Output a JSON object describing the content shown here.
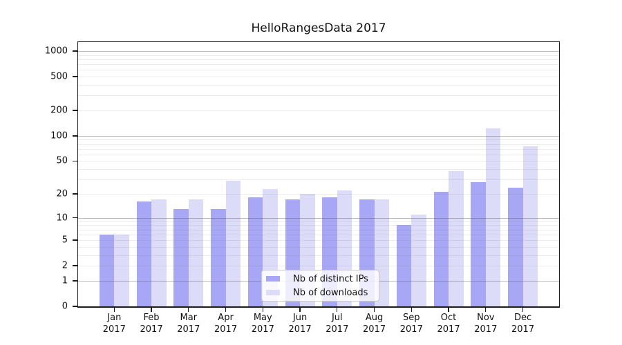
{
  "chart_data": {
    "type": "bar",
    "title": "HelloRangesData 2017",
    "categories": [
      "Jan",
      "Feb",
      "Mar",
      "Apr",
      "May",
      "Jun",
      "Jul",
      "Aug",
      "Sep",
      "Oct",
      "Nov",
      "Dec"
    ],
    "category_year": "2017",
    "series": [
      {
        "name": "Nb of distinct IPs",
        "color": "#a7a7f5",
        "values": [
          6,
          16,
          13,
          13,
          18,
          17,
          18,
          17,
          8,
          21,
          28,
          24
        ]
      },
      {
        "name": "Nb of downloads",
        "color": "#dcdcf8",
        "values": [
          6,
          17,
          17,
          29,
          23,
          20,
          22,
          17,
          11,
          38,
          123,
          75
        ]
      }
    ],
    "yscale": "log1p",
    "y_tick_values": [
      0,
      1,
      2,
      5,
      10,
      20,
      50,
      100,
      200,
      500,
      1000
    ],
    "ylim": [
      0,
      1275
    ],
    "grid": true,
    "legend_position": "lower center"
  },
  "colors": {
    "grid_major": "#b5b5b5",
    "grid_minor": "#ececec",
    "axis": "#1b1b1b",
    "text": "#111111"
  }
}
